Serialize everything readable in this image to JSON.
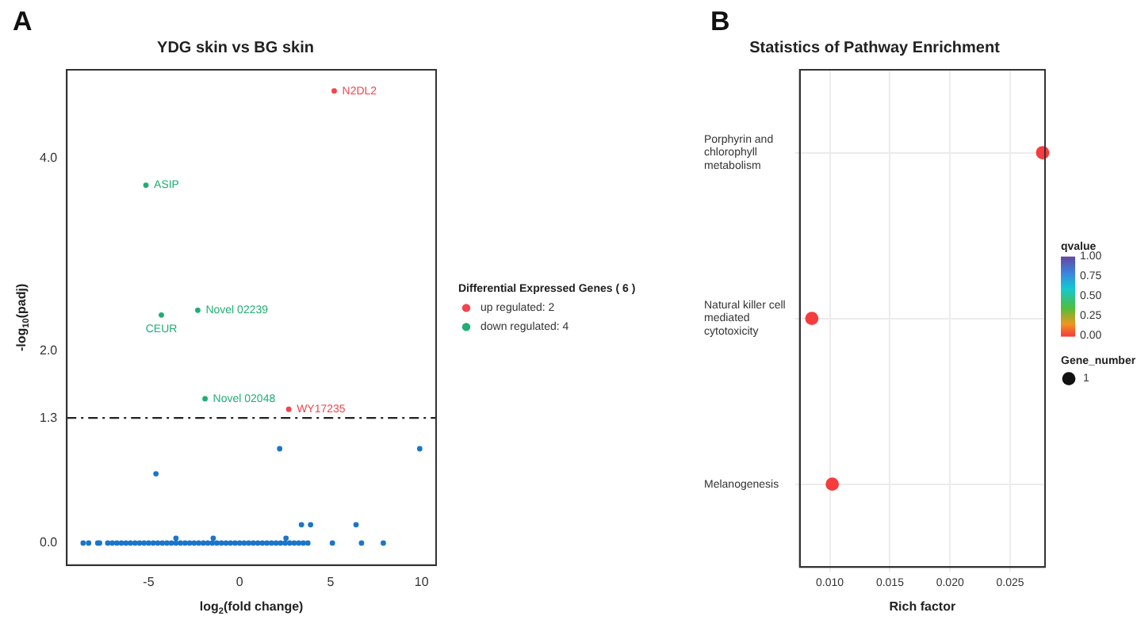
{
  "chart_data": [
    {
      "type": "scatter",
      "title": "YDG skin vs BG skin",
      "xlabel": "log$_{2}$(fold change)",
      "ylabel": "-log$_{10}$(padj)",
      "legend_title": "Differential Expressed Genes ( 6 )",
      "annotations": [
        "A",
        {
          "text": "N2DL2",
          "x": 5.2,
          "y": 4.7
        },
        {
          "text": "ASIP",
          "x": -5.15,
          "y": 3.72
        },
        {
          "text": "CEUR",
          "x": -4.3,
          "y": 2.37
        },
        {
          "text": "Novel 02239",
          "x": -2.3,
          "y": 2.42
        },
        {
          "text": "Novel 02048",
          "x": -1.9,
          "y": 1.5
        },
        {
          "text": "WY17235",
          "x": 2.7,
          "y": 1.39
        }
      ],
      "series": [
        {
          "name": "up regulated: 2",
          "color": "#f0454b",
          "x": [
            5.2,
            2.7
          ],
          "values": [
            4.7,
            1.39
          ]
        },
        {
          "name": "down regulated: 4",
          "color": "#1fae73",
          "x": [
            -5.15,
            -4.3,
            -2.3,
            -1.9
          ],
          "values": [
            3.72,
            2.37,
            2.42,
            1.5
          ]
        },
        {
          "color": "#1b75c9",
          "x": [
            -8.6,
            -8.3,
            -7.8,
            -7.7,
            -7.25,
            -7.0,
            -6.75,
            -6.5,
            -6.25,
            -6.0,
            -5.75,
            -5.5,
            -5.25,
            -5.0,
            -4.75,
            -4.5,
            -4.25,
            -4.0,
            -3.75,
            -3.5,
            -3.25,
            -3.0,
            -2.75,
            -2.5,
            -2.25,
            -2.0,
            -1.75,
            -1.5,
            -1.25,
            -1.0,
            -0.75,
            -0.5,
            -0.25,
            0.0,
            0.25,
            0.5,
            0.75,
            1.0,
            1.25,
            1.5,
            1.75,
            2.0,
            2.25,
            2.5,
            2.75,
            3.0,
            3.25,
            3.5,
            3.75,
            5.1,
            6.7,
            7.9,
            -3.5,
            -1.45,
            2.55,
            3.4,
            3.9,
            6.4,
            2.2,
            9.9,
            -4.6
          ],
          "values": [
            0,
            0,
            0,
            0,
            0,
            0,
            0,
            0,
            0,
            0,
            0,
            0,
            0,
            0,
            0,
            0,
            0,
            0,
            0,
            0,
            0,
            0,
            0,
            0,
            0,
            0,
            0,
            0,
            0,
            0,
            0,
            0,
            0,
            0,
            0,
            0,
            0,
            0,
            0,
            0,
            0,
            0,
            0,
            0,
            0,
            0,
            0,
            0,
            0,
            0,
            0,
            0,
            0.05,
            0.05,
            0.05,
            0.19,
            0.19,
            0.19,
            0.98,
            0.98,
            0.72
          ]
        }
      ],
      "xlim": [
        -9.5,
        10.8
      ],
      "xticks": [
        -5,
        0,
        5,
        10
      ],
      "ylim": [
        -0.23,
        4.92
      ],
      "yticks": [
        {
          "value": 0,
          "label": "0.0"
        },
        1.3,
        {
          "value": 2,
          "label": "2.0"
        },
        {
          "value": 4,
          "label": "4.0"
        }
      ],
      "ref_lines": [
        {
          "axis": "y",
          "value": 1.3
        }
      ],
      "grid": false,
      "legend": "right",
      "marker": "circle"
    },
    {
      "type": "bubble",
      "title": "Statistics of Pathway Enrichment",
      "xlabel": "Rich factor",
      "clabel": "qvalue",
      "legend_title": "Gene_number",
      "annotations": [
        "B"
      ],
      "orientation": "horizontal",
      "categories": [
        "Porphyrin and chlorophyll metabolism",
        "Natural killer cell mediated cytotoxicity",
        "Melanogenesis"
      ],
      "values": [
        0.0277,
        0.0085,
        0.0102
      ],
      "sizes": [
        1,
        1,
        1
      ],
      "size_legend": [
        1
      ],
      "cvalues": [
        0,
        0,
        0
      ],
      "clim": [
        0,
        1
      ],
      "cticks": [
        {
          "value": 0,
          "label": "0.00"
        },
        {
          "value": 0.25,
          "label": "0.25"
        },
        {
          "value": 0.5,
          "label": "0.50"
        },
        {
          "value": 0.75,
          "label": "0.75"
        },
        {
          "value": 1,
          "label": "1.00"
        }
      ],
      "xlim": [
        0.0075,
        0.0279
      ],
      "xticks": [
        {
          "value": 0.01,
          "label": "0.010"
        },
        {
          "value": 0.015,
          "label": "0.015"
        },
        {
          "value": 0.02,
          "label": "0.020"
        },
        {
          "value": 0.025,
          "label": "0.025"
        }
      ],
      "grid": true
    }
  ]
}
